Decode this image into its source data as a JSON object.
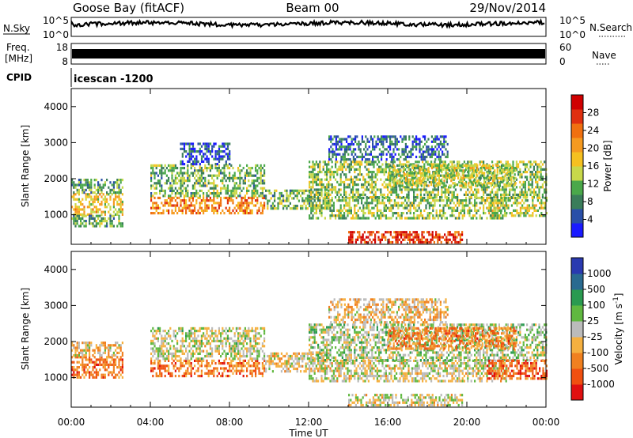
{
  "header": {
    "station": "Goose Bay (fitACF)",
    "beam": "Beam 00",
    "date": "29/Nov/2014"
  },
  "noise_panel": {
    "left_label": "N.Sky",
    "right_label": "N.Search",
    "left_ticks": [
      "10^5",
      "10^0"
    ],
    "right_ticks": [
      "10^5",
      "10^0"
    ]
  },
  "freq_panel": {
    "left_label_top": "Freq.",
    "left_label_bottom": "[MHz]",
    "left_ticks": [
      "18",
      "8"
    ],
    "right_label": "Nave",
    "right_ticks": [
      "60",
      "0"
    ]
  },
  "cpid": {
    "label": "CPID",
    "value": "icescan -1200"
  },
  "colors": {
    "power": [
      "#1a1aff",
      "#2a4fa8",
      "#3a7d5a",
      "#4aa84a",
      "#c8d84a",
      "#f5c020",
      "#f59a20",
      "#f07010",
      "#e03010",
      "#d00000"
    ],
    "velocity": [
      "#e01010",
      "#f05010",
      "#f08020",
      "#f5b040",
      "#bbbbbb",
      "#60b840",
      "#2a9a50",
      "#2a6a90",
      "#2a3ab0"
    ]
  },
  "chart_data": [
    {
      "type": "heatmap",
      "title": "",
      "xlabel": "",
      "ylabel": "Slant Range [km]",
      "x_ticks": [
        "00:00",
        "04:00",
        "08:00",
        "12:00",
        "16:00",
        "20:00",
        "00:00"
      ],
      "xlim": [
        0,
        24
      ],
      "ylim": [
        180,
        4500
      ],
      "y_ticks": [
        1000,
        2000,
        3000,
        4000
      ],
      "colorbar": {
        "label": "Power [dB]",
        "ticks": [
          "28",
          "24",
          "20",
          "16",
          "12",
          "8",
          "4"
        ],
        "range": [
          0,
          30
        ]
      },
      "regions": [
        {
          "t": [
            0.0,
            2.6
          ],
          "r": [
            1000,
            1600
          ],
          "level": 0.55
        },
        {
          "t": [
            0.0,
            2.6
          ],
          "r": [
            1600,
            2000
          ],
          "level": 0.3
        },
        {
          "t": [
            0.0,
            2.6
          ],
          "r": [
            700,
            1000
          ],
          "level": 0.35
        },
        {
          "t": [
            4.0,
            9.8
          ],
          "r": [
            1050,
            1500
          ],
          "level": 0.7
        },
        {
          "t": [
            4.0,
            9.8
          ],
          "r": [
            1500,
            2400
          ],
          "level": 0.35
        },
        {
          "t": [
            5.5,
            8.0
          ],
          "r": [
            2400,
            3000
          ],
          "level": 0.15
        },
        {
          "t": [
            9.8,
            13.0
          ],
          "r": [
            1200,
            1700
          ],
          "level": 0.35
        },
        {
          "t": [
            12.0,
            22.0
          ],
          "r": [
            900,
            1500
          ],
          "level": 0.4
        },
        {
          "t": [
            12.0,
            24.0
          ],
          "r": [
            1500,
            2500
          ],
          "level": 0.4
        },
        {
          "t": [
            13.0,
            19.0
          ],
          "r": [
            2500,
            3200
          ],
          "level": 0.2
        },
        {
          "t": [
            14.0,
            19.8
          ],
          "r": [
            250,
            550
          ],
          "level": 0.85
        },
        {
          "t": [
            16.0,
            22.5
          ],
          "r": [
            1800,
            2400
          ],
          "level": 0.45
        },
        {
          "t": [
            21.0,
            24.0
          ],
          "r": [
            1000,
            1500
          ],
          "level": 0.45
        }
      ]
    },
    {
      "type": "heatmap",
      "title": "",
      "xlabel": "Time UT",
      "ylabel": "Slant Range [km]",
      "x_ticks": [
        "00:00",
        "04:00",
        "08:00",
        "12:00",
        "16:00",
        "20:00",
        "00:00"
      ],
      "xlim": [
        0,
        24
      ],
      "ylim": [
        180,
        4500
      ],
      "y_ticks": [
        1000,
        2000,
        3000,
        4000
      ],
      "colorbar": {
        "label": "Velocity [m s^-1]",
        "ticks": [
          "1000",
          "500",
          "100",
          "25",
          "-25",
          "-100",
          "-500",
          "-1000"
        ],
        "range": [
          -1000,
          1000
        ]
      },
      "regions": [
        {
          "t": [
            0.0,
            2.6
          ],
          "r": [
            1000,
            1600
          ],
          "level": 0.25
        },
        {
          "t": [
            0.0,
            2.6
          ],
          "r": [
            1600,
            2000
          ],
          "level": 0.4
        },
        {
          "t": [
            4.0,
            9.8
          ],
          "r": [
            1050,
            1500
          ],
          "level": 0.25
        },
        {
          "t": [
            4.0,
            9.8
          ],
          "r": [
            1500,
            2400
          ],
          "level": 0.5
        },
        {
          "t": [
            9.8,
            13.0
          ],
          "r": [
            1200,
            1700
          ],
          "level": 0.45
        },
        {
          "t": [
            12.0,
            22.0
          ],
          "r": [
            900,
            1500
          ],
          "level": 0.48
        },
        {
          "t": [
            12.0,
            24.0
          ],
          "r": [
            1500,
            2500
          ],
          "level": 0.55
        },
        {
          "t": [
            13.0,
            19.0
          ],
          "r": [
            2500,
            3200
          ],
          "level": 0.4
        },
        {
          "t": [
            14.0,
            19.8
          ],
          "r": [
            250,
            550
          ],
          "level": 0.48
        },
        {
          "t": [
            16.0,
            22.5
          ],
          "r": [
            1800,
            2400
          ],
          "level": 0.28
        },
        {
          "t": [
            21.0,
            24.0
          ],
          "r": [
            1000,
            1500
          ],
          "level": 0.2
        }
      ]
    }
  ]
}
